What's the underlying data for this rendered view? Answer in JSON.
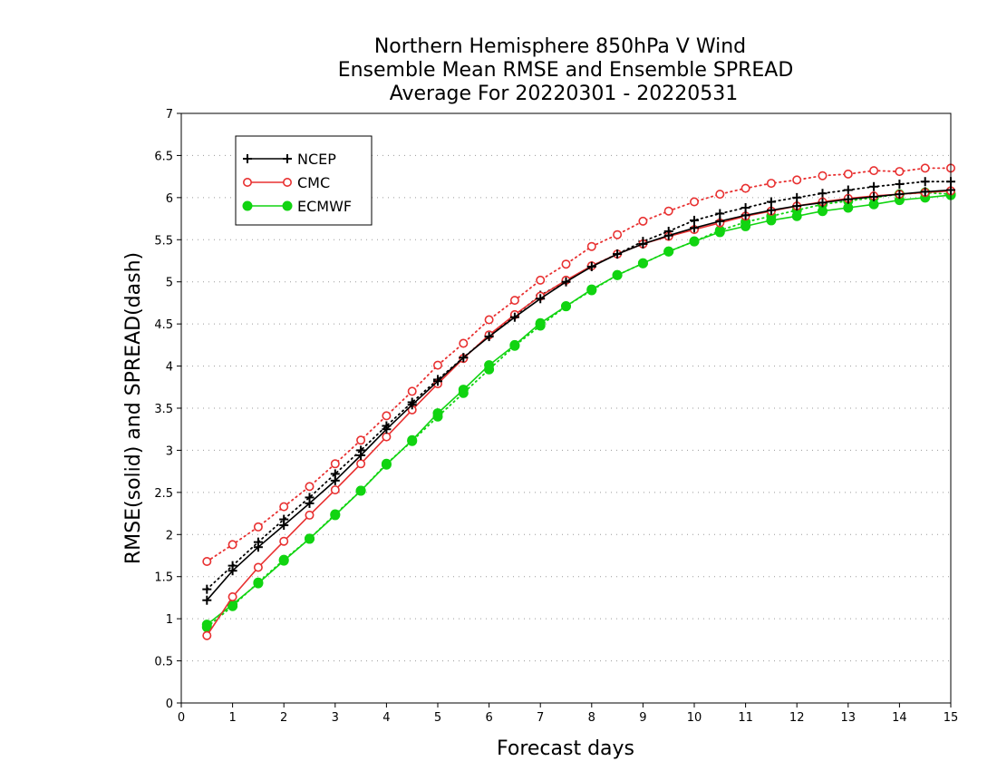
{
  "chart_data": {
    "type": "line",
    "title": [
      "Northern Hemisphere 850hPa V Wind",
      "Ensemble Mean RMSE and Ensemble SPREAD",
      "Average For 20220301 - 20220531"
    ],
    "xlabel": "Forecast days",
    "ylabel": "RMSE(solid) and SPREAD(dash)",
    "xlim": [
      0,
      15
    ],
    "ylim": [
      0,
      7
    ],
    "x_ticks": [
      "0",
      "1",
      "2",
      "3",
      "4",
      "5",
      "6",
      "7",
      "8",
      "9",
      "10",
      "11",
      "12",
      "13",
      "14",
      "15"
    ],
    "y_ticks": [
      "0",
      "0.5",
      "1",
      "1.5",
      "2",
      "2.5",
      "3",
      "3.5",
      "4",
      "4.5",
      "5",
      "5.5",
      "6",
      "6.5",
      "7"
    ],
    "grid": "horizontal dotted",
    "legend_position": "top-left",
    "x": [
      0.5,
      1,
      1.5,
      2,
      2.5,
      3,
      3.5,
      4,
      4.5,
      5,
      5.5,
      6,
      6.5,
      7,
      7.5,
      8,
      8.5,
      9,
      9.5,
      10,
      10.5,
      11,
      11.5,
      12,
      12.5,
      13,
      13.5,
      14,
      14.5,
      15
    ],
    "series": [
      {
        "name": "NCEP",
        "color": "#000000",
        "marker": "plus",
        "kind": "rmse",
        "values": [
          1.22,
          1.57,
          1.85,
          2.11,
          2.37,
          2.64,
          2.94,
          3.25,
          3.54,
          3.82,
          4.1,
          4.35,
          4.58,
          4.8,
          5.0,
          5.18,
          5.33,
          5.45,
          5.55,
          5.64,
          5.72,
          5.79,
          5.85,
          5.9,
          5.94,
          5.98,
          6.01,
          6.04,
          6.07,
          6.09
        ]
      },
      {
        "name": "NCEP",
        "color": "#000000",
        "marker": "plus",
        "kind": "spread",
        "values": [
          1.35,
          1.63,
          1.91,
          2.18,
          2.44,
          2.72,
          3.0,
          3.29,
          3.57,
          3.84,
          4.1,
          4.36,
          4.6,
          4.84,
          5.01,
          5.19,
          5.33,
          5.48,
          5.6,
          5.73,
          5.81,
          5.88,
          5.95,
          6.0,
          6.05,
          6.09,
          6.13,
          6.16,
          6.19,
          6.19
        ]
      },
      {
        "name": "CMC",
        "color": "#e83030",
        "marker": "circle",
        "kind": "rmse",
        "values": [
          0.8,
          1.26,
          1.61,
          1.92,
          2.23,
          2.53,
          2.84,
          3.16,
          3.48,
          3.79,
          4.09,
          4.37,
          4.61,
          4.83,
          5.02,
          5.19,
          5.33,
          5.45,
          5.54,
          5.62,
          5.7,
          5.78,
          5.84,
          5.9,
          5.95,
          5.99,
          6.02,
          6.04,
          6.06,
          6.08
        ]
      },
      {
        "name": "CMC",
        "color": "#e83030",
        "marker": "circle",
        "kind": "spread",
        "values": [
          1.68,
          1.88,
          2.09,
          2.33,
          2.57,
          2.84,
          3.12,
          3.41,
          3.7,
          4.01,
          4.27,
          4.55,
          4.78,
          5.02,
          5.21,
          5.42,
          5.56,
          5.72,
          5.84,
          5.95,
          6.04,
          6.11,
          6.17,
          6.21,
          6.26,
          6.28,
          6.32,
          6.31,
          6.35,
          6.35
        ]
      },
      {
        "name": "ECMWF",
        "color": "#11d411",
        "marker": "dot",
        "kind": "rmse",
        "values": [
          0.93,
          1.17,
          1.42,
          1.69,
          1.95,
          2.23,
          2.52,
          2.83,
          3.12,
          3.44,
          3.72,
          4.01,
          4.25,
          4.51,
          4.71,
          4.91,
          5.08,
          5.22,
          5.36,
          5.48,
          5.59,
          5.66,
          5.73,
          5.78,
          5.84,
          5.88,
          5.92,
          5.97,
          6.0,
          6.03
        ]
      },
      {
        "name": "ECMWF",
        "color": "#11d411",
        "marker": "dot",
        "kind": "spread",
        "values": [
          0.9,
          1.15,
          1.43,
          1.7,
          1.95,
          2.24,
          2.52,
          2.84,
          3.11,
          3.4,
          3.68,
          3.96,
          4.24,
          4.48,
          4.71,
          4.9,
          5.08,
          5.22,
          5.36,
          5.48,
          5.61,
          5.71,
          5.78,
          5.85,
          5.92,
          5.96,
          6.0,
          6.04,
          6.06,
          6.04
        ]
      }
    ]
  }
}
